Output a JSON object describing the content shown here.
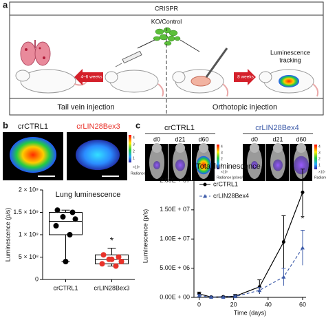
{
  "panel_a": {
    "label": "a",
    "header": "CRISPR",
    "agent": "KO/Control",
    "arrow_left": "4–6 weeks",
    "arrow_right": "8 weeks",
    "luminescence_tracking": [
      "Luminescence",
      "tracking"
    ],
    "left_caption": "Tail vein injection",
    "right_caption": "Orthotopic injection"
  },
  "panel_b": {
    "label": "b",
    "image_titles": [
      "crCTRL1",
      "crLIN28Bex3"
    ],
    "colorbar_ticks": [
      "4",
      "3",
      "2",
      "1"
    ],
    "colorbar_unit": "×10⁷",
    "colorbar_title": "Radiance (p/sec/cm²/sr)"
  },
  "panel_c": {
    "label": "c",
    "groups": [
      {
        "title": "crCTRL1",
        "days": [
          "d0",
          "d21",
          "d60"
        ]
      },
      {
        "title": "crLIN28Bex4",
        "days": [
          "d0",
          "d21",
          "d60"
        ]
      }
    ],
    "colorbar_ticks": [
      "4",
      "3",
      "2",
      "1"
    ],
    "colorbar_unit": "×10⁷",
    "colorbar_title": "Radiance (p/sec/cm²/sr)"
  },
  "chart_data": [
    {
      "type": "box",
      "title": "Lung luminescence",
      "ylabel": "Luminescence (p/s)",
      "categories": [
        "crCTRL1",
        "crLIN28Bex3"
      ],
      "ylim": [
        0,
        2000000000
      ],
      "yticks": [
        0,
        {
          "value": 500000000,
          "label": "5 × 10⁸"
        },
        {
          "value": 1000000000,
          "label": "1 × 10⁹"
        },
        {
          "value": 1500000000,
          "label": "1.5 × 10⁹"
        },
        {
          "value": 2000000000,
          "label": "2 × 10⁹"
        }
      ],
      "boxes": [
        {
          "min": 400000000,
          "q1": 1000000000,
          "median": 1300000000,
          "q3": 1500000000,
          "max": 1550000000
        },
        {
          "min": 300000000,
          "q1": 350000000,
          "median": 450000000,
          "q3": 550000000,
          "max": 700000000
        }
      ],
      "points": [
        [
          1550000000,
          1500000000,
          1400000000,
          1350000000,
          1200000000,
          1000000000,
          400000000
        ],
        [
          550000000,
          500000000,
          450000000,
          400000000,
          350000000,
          300000000,
          450000000
        ]
      ],
      "colors": [
        "#000000",
        "#e8322a"
      ],
      "annotation": "*"
    },
    {
      "type": "line",
      "title": "Total luminescence",
      "xlabel": "Time (days)",
      "ylabel": "Luminescence (p/s)",
      "x": [
        0,
        7,
        14,
        21,
        35,
        49,
        60
      ],
      "xlim": [
        -3,
        62
      ],
      "xticks": [
        0,
        20,
        40,
        60
      ],
      "ylim": [
        0,
        21000000
      ],
      "yticks": [
        {
          "value": 0,
          "label": "0.00E + 00"
        },
        {
          "value": 5000000,
          "label": "5.00E + 06"
        },
        {
          "value": 10000000,
          "label": "1.00E + 07"
        },
        {
          "value": 15000000,
          "label": "1.50E + 07"
        },
        {
          "value": 20000000,
          "label": "2.00E + 07"
        }
      ],
      "series": [
        {
          "name": "crCTRL1",
          "color": "#000000",
          "marker": "circle",
          "dashed": false,
          "values": [
            600000,
            50000,
            100000,
            200000,
            1800000,
            9500000,
            18000000
          ],
          "errors": [
            300000,
            100000,
            100000,
            300000,
            1200000,
            4500000,
            4000000
          ]
        },
        {
          "name": "crLIN28Bex4",
          "color": "#3d5ba9",
          "marker": "triangle",
          "dashed": true,
          "values": [
            300000,
            50000,
            50000,
            150000,
            1200000,
            3500000,
            8500000
          ],
          "errors": [
            200000,
            50000,
            50000,
            200000,
            500000,
            1500000,
            3000000
          ]
        }
      ],
      "legend": "upper left",
      "annotation": "*"
    }
  ]
}
